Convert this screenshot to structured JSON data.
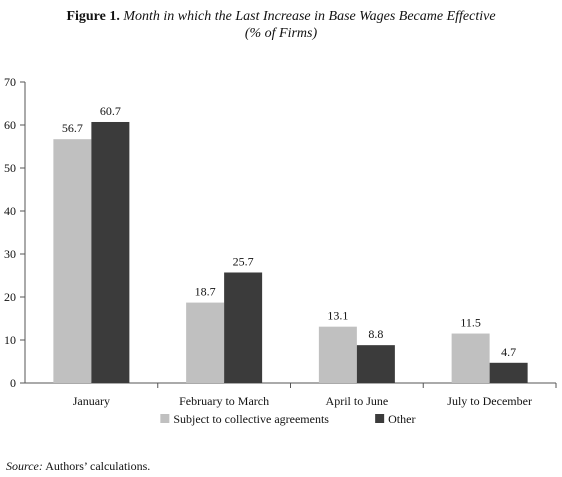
{
  "figure": {
    "label": "Figure 1.",
    "title": "Month in which the Last Increase in Base Wages Became Effective",
    "subtitle": "(% of Firms)"
  },
  "chart_data": {
    "type": "bar",
    "categories": [
      "January",
      "February to March",
      "April to June",
      "July to December"
    ],
    "series": [
      {
        "name": "Subject to collective agreements",
        "values": [
          56.7,
          18.7,
          13.1,
          11.5
        ],
        "color": "#c0c0c0"
      },
      {
        "name": "Other",
        "values": [
          60.7,
          25.7,
          8.8,
          4.7
        ],
        "color": "#3b3b3b"
      }
    ],
    "data_labels": [
      [
        "56.7",
        "18.7",
        "13.1",
        "11.5"
      ],
      [
        "60.7",
        "25.7",
        "8.8",
        "4.7"
      ]
    ],
    "ylim": [
      0,
      70
    ],
    "yticks": [
      0,
      10,
      20,
      30,
      40,
      50,
      60,
      70
    ],
    "grid": false,
    "legend_position": "bottom"
  },
  "source": {
    "label": "Source:",
    "text": "Authors’ calculations."
  }
}
